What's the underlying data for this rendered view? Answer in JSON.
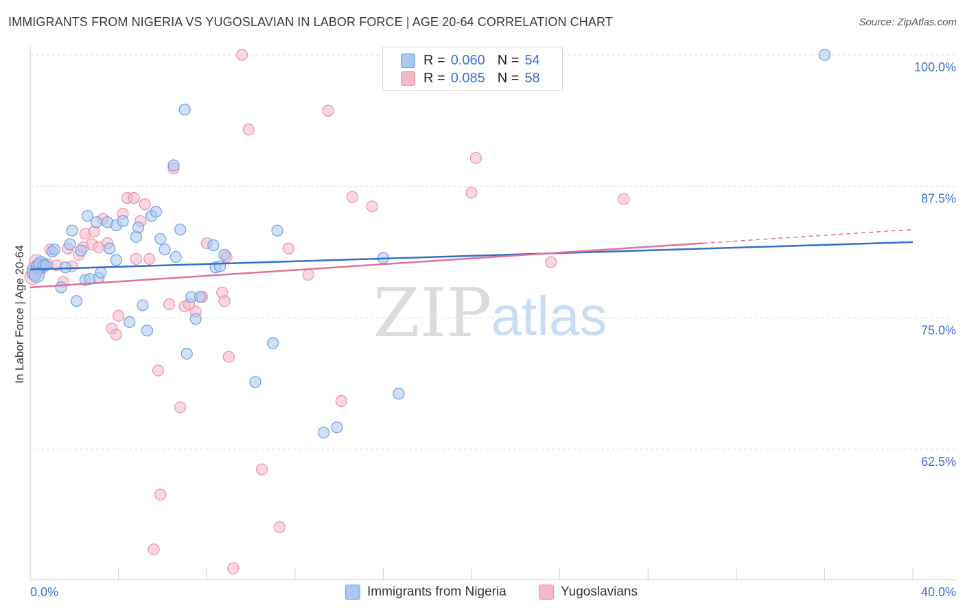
{
  "title": "IMMIGRANTS FROM NIGERIA VS YUGOSLAVIAN IN LABOR FORCE | AGE 20-64 CORRELATION CHART",
  "source": "Source: ZipAtlas.com",
  "watermark": {
    "zip": "ZIP",
    "atlas": "atlas"
  },
  "legend": {
    "rows": [
      {
        "r_label": "R =",
        "r_value": "0.060",
        "n_label": "N =",
        "n_value": "54"
      },
      {
        "r_label": "R =",
        "r_value": "0.085",
        "n_label": "N =",
        "n_value": "58"
      }
    ]
  },
  "bottom_legend": {
    "series1": "Immigrants from Nigeria",
    "series2": "Yugoslavians"
  },
  "colors": {
    "blue_fill": "#a9c7f0",
    "blue_stroke": "#6f9fe0",
    "blue_line": "#2f6fcb",
    "pink_fill": "#f6b8cc",
    "pink_stroke": "#ee8fac",
    "pink_line": "#e0709a",
    "tick_text": "#3a6fcf",
    "grid": "#d9d9d9"
  },
  "chart_data": {
    "type": "scatter",
    "title": "IMMIGRANTS FROM NIGERIA VS YUGOSLAVIAN IN LABOR FORCE | AGE 20-64 CORRELATION CHART",
    "xlabel": "",
    "ylabel": "In Labor Force | Age 20-64",
    "xlim": [
      0,
      40
    ],
    "ylim": [
      51,
      101
    ],
    "x_tick_labels": [
      {
        "value": 0,
        "label": "0.0%"
      },
      {
        "value": 40,
        "label": "40.0%"
      }
    ],
    "y_ticks": [
      {
        "value": 100,
        "label": "100.0%"
      },
      {
        "value": 87.5,
        "label": "87.5%"
      },
      {
        "value": 75,
        "label": "75.0%"
      },
      {
        "value": 62.5,
        "label": "62.5%"
      }
    ],
    "x_minor_ticks": [
      0,
      4,
      8,
      12,
      16,
      20,
      24,
      28,
      32,
      36,
      40
    ],
    "series": [
      {
        "name": "Immigrants from Nigeria",
        "color": "blue",
        "R": 0.06,
        "N": 54,
        "points": [
          [
            0.2,
            79.3
          ],
          [
            0.4,
            79.9
          ],
          [
            0.5,
            80.1
          ],
          [
            0.6,
            80.0
          ],
          [
            0.7,
            80.0
          ],
          [
            1.0,
            81.3
          ],
          [
            1.1,
            81.5
          ],
          [
            1.4,
            77.9
          ],
          [
            1.6,
            79.8
          ],
          [
            1.8,
            82.0
          ],
          [
            1.9,
            83.3
          ],
          [
            2.1,
            76.6
          ],
          [
            2.3,
            81.4
          ],
          [
            2.5,
            78.6
          ],
          [
            2.6,
            84.7
          ],
          [
            2.7,
            78.7
          ],
          [
            3.0,
            84.1
          ],
          [
            3.1,
            78.8
          ],
          [
            3.2,
            79.3
          ],
          [
            3.5,
            84.1
          ],
          [
            3.6,
            81.6
          ],
          [
            3.9,
            80.5
          ],
          [
            3.9,
            83.8
          ],
          [
            4.2,
            84.2
          ],
          [
            4.5,
            74.6
          ],
          [
            4.8,
            82.7
          ],
          [
            4.9,
            83.6
          ],
          [
            5.1,
            76.2
          ],
          [
            5.3,
            73.8
          ],
          [
            5.5,
            84.7
          ],
          [
            5.7,
            85.1
          ],
          [
            5.9,
            82.5
          ],
          [
            6.1,
            81.5
          ],
          [
            6.5,
            89.5
          ],
          [
            6.6,
            80.8
          ],
          [
            6.8,
            83.4
          ],
          [
            7.0,
            94.8
          ],
          [
            7.1,
            71.6
          ],
          [
            7.3,
            77.0
          ],
          [
            7.5,
            74.9
          ],
          [
            7.7,
            77.0
          ],
          [
            8.3,
            81.9
          ],
          [
            8.4,
            79.8
          ],
          [
            8.6,
            79.9
          ],
          [
            8.8,
            81.0
          ],
          [
            10.2,
            68.9
          ],
          [
            11.2,
            83.3
          ],
          [
            11.0,
            72.6
          ],
          [
            13.3,
            64.1
          ],
          [
            13.9,
            64.6
          ],
          [
            16.0,
            80.7
          ],
          [
            16.7,
            67.8
          ],
          [
            36.0,
            100.0
          ],
          [
            0.3,
            79.1
          ]
        ]
      },
      {
        "name": "Yugoslavians",
        "color": "pink",
        "R": 0.085,
        "N": 58,
        "points": [
          [
            0.1,
            78.9
          ],
          [
            0.2,
            79.6
          ],
          [
            0.3,
            80.3
          ],
          [
            0.5,
            79.9
          ],
          [
            0.8,
            80.1
          ],
          [
            0.9,
            81.5
          ],
          [
            1.2,
            80.0
          ],
          [
            1.5,
            78.4
          ],
          [
            1.7,
            81.6
          ],
          [
            1.9,
            79.9
          ],
          [
            2.2,
            81.0
          ],
          [
            2.4,
            81.7
          ],
          [
            2.5,
            83.0
          ],
          [
            2.8,
            82.0
          ],
          [
            2.9,
            83.2
          ],
          [
            3.1,
            81.7
          ],
          [
            3.3,
            84.4
          ],
          [
            3.5,
            82.1
          ],
          [
            3.7,
            74.0
          ],
          [
            3.9,
            73.4
          ],
          [
            4.0,
            75.2
          ],
          [
            4.2,
            84.9
          ],
          [
            4.4,
            86.4
          ],
          [
            4.7,
            86.4
          ],
          [
            4.8,
            80.6
          ],
          [
            5.0,
            84.2
          ],
          [
            5.2,
            85.8
          ],
          [
            5.4,
            80.6
          ],
          [
            5.8,
            70.0
          ],
          [
            5.9,
            58.2
          ],
          [
            5.6,
            53.0
          ],
          [
            6.3,
            76.3
          ],
          [
            6.5,
            89.2
          ],
          [
            6.8,
            66.5
          ],
          [
            7.0,
            76.1
          ],
          [
            7.2,
            76.3
          ],
          [
            7.5,
            75.6
          ],
          [
            7.8,
            77.0
          ],
          [
            8.0,
            82.1
          ],
          [
            8.7,
            77.4
          ],
          [
            8.8,
            76.6
          ],
          [
            8.9,
            80.8
          ],
          [
            9.0,
            71.3
          ],
          [
            9.2,
            51.2
          ],
          [
            9.6,
            100.0
          ],
          [
            9.9,
            92.9
          ],
          [
            10.5,
            60.6
          ],
          [
            11.3,
            55.1
          ],
          [
            11.7,
            81.6
          ],
          [
            12.6,
            79.1
          ],
          [
            13.5,
            94.7
          ],
          [
            14.1,
            67.1
          ],
          [
            14.6,
            86.5
          ],
          [
            15.5,
            85.6
          ],
          [
            20.2,
            90.2
          ],
          [
            20.0,
            86.9
          ],
          [
            23.6,
            80.3
          ],
          [
            26.9,
            86.3
          ]
        ]
      }
    ],
    "trendlines": [
      {
        "series": "Immigrants from Nigeria",
        "x_start": 0,
        "y_start": 79.6,
        "x_end": 40,
        "y_end": 82.2,
        "dashed_from": null
      },
      {
        "series": "Yugoslavians",
        "x_start": 0,
        "y_start": 77.9,
        "x_end": 30.5,
        "y_end": 82.1,
        "dashed_from": 30.5,
        "x_dash_end": 40,
        "y_dash_end": 83.4
      }
    ]
  }
}
